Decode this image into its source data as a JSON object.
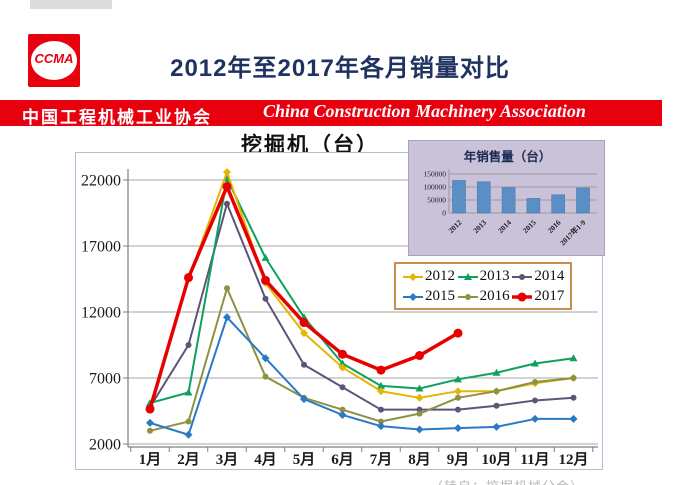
{
  "header": {
    "logo_text": "CCMA",
    "title": "2012年至2017年各月销量对比",
    "banner_cn": "中国工程机械工业协会",
    "banner_en": "China Construction Machinery Association"
  },
  "chart_data": [
    {
      "type": "line",
      "title": "挖掘机（台）",
      "categories": [
        "1月",
        "2月",
        "3月",
        "4月",
        "5月",
        "6月",
        "7月",
        "8月",
        "9月",
        "10月",
        "11月",
        "12月"
      ],
      "ylim": [
        2000,
        24000
      ],
      "yticks": [
        22000,
        17000,
        12000,
        7000,
        2000
      ],
      "grid": true,
      "legend_position": "right-middle",
      "series": [
        {
          "name": "2012",
          "color": "#e3b505",
          "marker": "diamond",
          "values": [
            4700,
            14500,
            22600,
            14200,
            10400,
            7800,
            6000,
            5500,
            6000,
            6000,
            6600,
            7000
          ]
        },
        {
          "name": "2013",
          "color": "#0fa05e",
          "marker": "triangle",
          "values": [
            5100,
            5900,
            22100,
            16100,
            11600,
            8100,
            6400,
            6200,
            6900,
            7400,
            8100,
            8500
          ]
        },
        {
          "name": "2014",
          "color": "#5e5478",
          "marker": "circle",
          "values": [
            4800,
            9500,
            20200,
            13000,
            8000,
            6300,
            4600,
            4600,
            4600,
            4900,
            5300,
            5500
          ]
        },
        {
          "name": "2015",
          "color": "#2a79c4",
          "marker": "diamond",
          "values": [
            3600,
            2700,
            11600,
            8500,
            5400,
            4200,
            3350,
            3100,
            3200,
            3300,
            3900,
            3900
          ]
        },
        {
          "name": "2016",
          "color": "#8e9140",
          "marker": "circle",
          "values": [
            3000,
            3700,
            13800,
            7100,
            5500,
            4600,
            3700,
            4300,
            5500,
            6000,
            6700,
            7000
          ]
        },
        {
          "name": "2017",
          "color": "#e80000",
          "marker": "circle",
          "thick": true,
          "values": [
            4650,
            14600,
            21500,
            14400,
            11200,
            8800,
            7600,
            8700,
            10400,
            null,
            null,
            null
          ]
        }
      ]
    },
    {
      "type": "bar",
      "title": "年销售量（台）",
      "categories": [
        "2012",
        "2013",
        "2014",
        "2015",
        "2016",
        "2017年1-9"
      ],
      "values": [
        125000,
        120000,
        97000,
        56000,
        70000,
        96000
      ],
      "yticks": [
        150000,
        100000,
        50000,
        0
      ],
      "ylim": [
        0,
        150000
      ],
      "bar_color": "#5b8ec4",
      "bar_stroke": "#4a7ab0"
    }
  ],
  "footer": {
    "caption": "（转自：挖掘机械分会）"
  }
}
